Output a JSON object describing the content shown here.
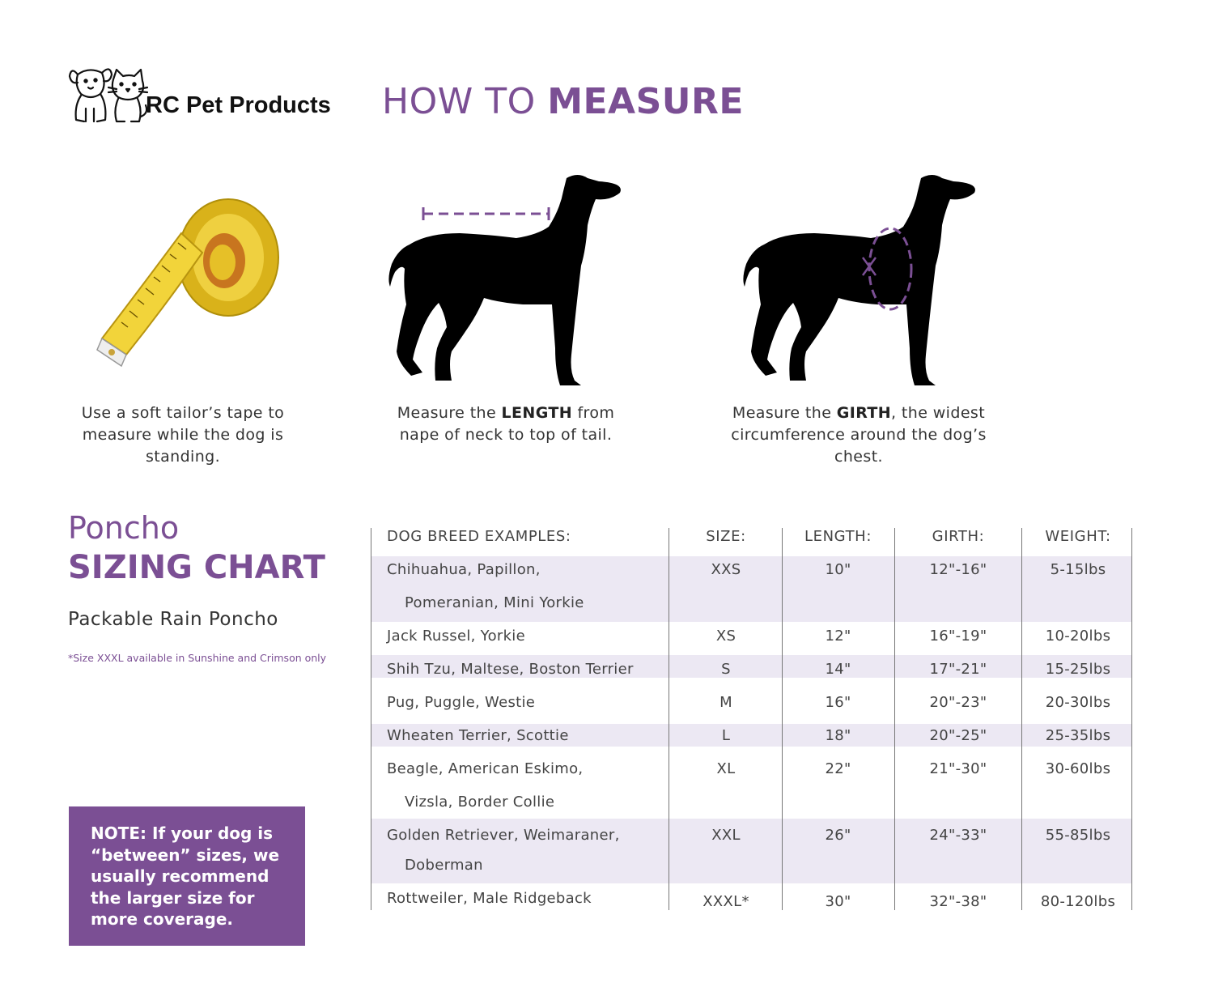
{
  "brand": {
    "name": "RC Pet Products",
    "logo_icon": "dog-and-cat-logo-icon"
  },
  "header": {
    "title_light": "HOW TO ",
    "title_bold": "MEASURE"
  },
  "steps": [
    {
      "icon": "measuring-tape-icon",
      "caption_before": "Use a soft tailor’s tape to measure while the dog is standing.",
      "caption_bold": "",
      "caption_after": ""
    },
    {
      "icon": "dog-length-silhouette-icon",
      "caption_before": "Measure the ",
      "caption_bold": "LENGTH",
      "caption_after": " from nape of neck to top of tail."
    },
    {
      "icon": "dog-girth-silhouette-icon",
      "caption_before": "Measure the ",
      "caption_bold": "GIRTH",
      "caption_after": ", the widest circumference around the dog’s chest."
    }
  ],
  "sizing": {
    "product_line": "Poncho",
    "chart_title": "SIZING CHART",
    "product_name": "Packable Rain Poncho",
    "footnote": "*Size XXXL available in Sunshine and Crimson only",
    "note": "NOTE: If your dog is “between” sizes, we usually recommend the larger size for more coverage."
  },
  "colors": {
    "accent": "#7b4f94",
    "row_shade": "#ece8f3"
  },
  "table": {
    "headers": {
      "breed": "DOG BREED  EXAMPLES:",
      "size": "SIZE:",
      "length": "LENGTH:",
      "girth": "GIRTH:",
      "weight": "WEIGHT:"
    },
    "rows": [
      {
        "breed1": "Chihuahua, Papillon,",
        "breed2": "Pomeranian, Mini Yorkie",
        "size": "XXS",
        "length": "10\"",
        "girth": "12\"-16\"",
        "weight": "5-15lbs"
      },
      {
        "breed1": "Jack Russel, Yorkie",
        "breed2": "",
        "size": "XS",
        "length": "12\"",
        "girth": "16\"-19\"",
        "weight": "10-20lbs"
      },
      {
        "breed1": "Shih Tzu, Maltese, Boston Terrier",
        "breed2": "",
        "size": "S",
        "length": "14\"",
        "girth": "17\"-21\"",
        "weight": "15-25lbs"
      },
      {
        "breed1": "Pug, Puggle, Westie",
        "breed2": "",
        "size": "M",
        "length": "16\"",
        "girth": "20\"-23\"",
        "weight": "20-30lbs"
      },
      {
        "breed1": "Wheaten Terrier, Scottie",
        "breed2": "",
        "size": "L",
        "length": "18\"",
        "girth": "20\"-25\"",
        "weight": "25-35lbs"
      },
      {
        "breed1": "Beagle, American Eskimo,",
        "breed2": "Vizsla, Border Collie",
        "size": "XL",
        "length": "22\"",
        "girth": "21\"-30\"",
        "weight": "30-60lbs"
      },
      {
        "breed1": "Golden Retriever, Weimaraner,",
        "breed2": "Doberman",
        "size": "XXL",
        "length": "26\"",
        "girth": "24\"-33\"",
        "weight": "55-85lbs"
      },
      {
        "breed1": "Rottweiler, Male Ridgeback",
        "breed2": "",
        "size": "XXXL*",
        "length": "30\"",
        "girth": "32\"-38\"",
        "weight": "80-120lbs"
      }
    ]
  }
}
